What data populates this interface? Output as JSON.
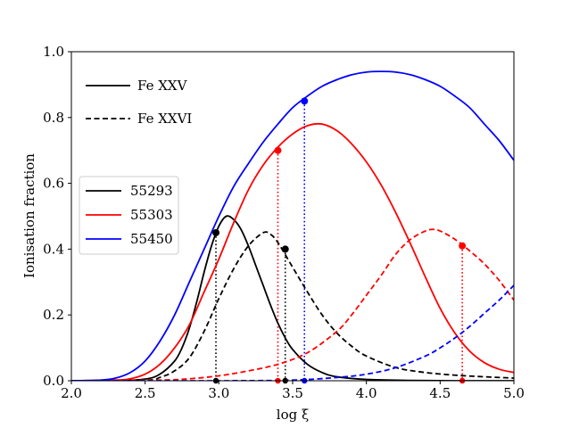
{
  "chart_data": {
    "type": "line",
    "title": "",
    "xlabel": "log ξ",
    "ylabel": "Ionisation fraction",
    "xlim": [
      2.0,
      5.0
    ],
    "ylim": [
      0.0,
      1.0
    ],
    "xticks": [
      2.0,
      2.5,
      3.0,
      3.5,
      4.0,
      4.5,
      5.0
    ],
    "xtick_labels": [
      "2.0",
      "2.5",
      "3.0",
      "3.5",
      "4.0",
      "4.5",
      "5.0"
    ],
    "yticks": [
      0.0,
      0.2,
      0.4,
      0.6,
      0.8,
      1.0
    ],
    "ytick_labels": [
      "0.0",
      "0.2",
      "0.4",
      "0.6",
      "0.8",
      "1.0"
    ],
    "grid": false,
    "style_legend": {
      "placement": "top-left",
      "entries": [
        {
          "label": "Fe XXV",
          "linestyle": "solid"
        },
        {
          "label": "Fe XXVI",
          "linestyle": "dashed"
        }
      ]
    },
    "color_legend": {
      "placement": "center-left",
      "entries": [
        {
          "label": "55293",
          "color": "#000000"
        },
        {
          "label": "55303",
          "color": "#ff0000"
        },
        {
          "label": "55450",
          "color": "#0000ff"
        }
      ]
    },
    "series": [
      {
        "name": "55293 Fe XXV",
        "color": "#000000",
        "linestyle": "solid",
        "x": [
          2.0,
          2.3,
          2.5,
          2.6,
          2.7,
          2.75,
          2.8,
          2.85,
          2.9,
          2.95,
          3.0,
          3.05,
          3.1,
          3.15,
          3.2,
          3.25,
          3.3,
          3.35,
          3.4,
          3.45,
          3.5,
          3.6,
          3.7,
          3.8,
          4.0,
          4.3,
          4.6,
          5.0
        ],
        "y": [
          0.0,
          0.0,
          0.005,
          0.02,
          0.06,
          0.1,
          0.16,
          0.24,
          0.33,
          0.41,
          0.47,
          0.5,
          0.49,
          0.46,
          0.41,
          0.35,
          0.29,
          0.23,
          0.175,
          0.13,
          0.095,
          0.05,
          0.025,
          0.012,
          0.004,
          0.001,
          0.0,
          0.0
        ]
      },
      {
        "name": "55293 Fe XXVI",
        "color": "#000000",
        "linestyle": "dashed",
        "x": [
          2.0,
          2.5,
          2.6,
          2.7,
          2.8,
          2.9,
          3.0,
          3.1,
          3.2,
          3.3,
          3.35,
          3.4,
          3.5,
          3.6,
          3.7,
          3.8,
          3.9,
          4.0,
          4.2,
          4.4,
          4.6,
          4.8,
          5.0
        ],
        "y": [
          0.0,
          0.002,
          0.01,
          0.03,
          0.07,
          0.15,
          0.25,
          0.34,
          0.41,
          0.45,
          0.445,
          0.42,
          0.345,
          0.27,
          0.2,
          0.145,
          0.105,
          0.075,
          0.04,
          0.025,
          0.017,
          0.012,
          0.008
        ]
      },
      {
        "name": "55303 Fe XXV",
        "color": "#ff0000",
        "linestyle": "solid",
        "x": [
          2.0,
          2.3,
          2.4,
          2.5,
          2.6,
          2.7,
          2.8,
          2.9,
          3.0,
          3.1,
          3.2,
          3.3,
          3.4,
          3.5,
          3.6,
          3.7,
          3.8,
          3.9,
          4.0,
          4.1,
          4.2,
          4.3,
          4.4,
          4.5,
          4.6,
          4.7,
          4.8,
          4.9,
          5.0
        ],
        "y": [
          0.0,
          0.002,
          0.006,
          0.02,
          0.05,
          0.1,
          0.17,
          0.27,
          0.37,
          0.48,
          0.58,
          0.655,
          0.71,
          0.75,
          0.775,
          0.78,
          0.76,
          0.72,
          0.665,
          0.595,
          0.51,
          0.415,
          0.315,
          0.22,
          0.145,
          0.09,
          0.055,
          0.035,
          0.025
        ]
      },
      {
        "name": "55303 Fe XXVI",
        "color": "#ff0000",
        "linestyle": "dashed",
        "x": [
          2.0,
          2.6,
          2.8,
          3.0,
          3.2,
          3.4,
          3.6,
          3.8,
          3.9,
          4.0,
          4.1,
          4.2,
          4.3,
          4.4,
          4.45,
          4.5,
          4.6,
          4.7,
          4.8,
          4.9,
          5.0
        ],
        "y": [
          0.0,
          0.002,
          0.006,
          0.015,
          0.03,
          0.05,
          0.085,
          0.15,
          0.2,
          0.26,
          0.32,
          0.385,
          0.43,
          0.455,
          0.46,
          0.455,
          0.43,
          0.395,
          0.355,
          0.305,
          0.245
        ]
      },
      {
        "name": "55450 Fe XXV",
        "color": "#0000ff",
        "linestyle": "solid",
        "x": [
          2.0,
          2.2,
          2.3,
          2.4,
          2.5,
          2.6,
          2.7,
          2.8,
          2.9,
          3.0,
          3.1,
          3.2,
          3.3,
          3.4,
          3.5,
          3.6,
          3.7,
          3.8,
          3.9,
          4.0,
          4.1,
          4.2,
          4.3,
          4.4,
          4.5,
          4.6,
          4.7,
          4.8,
          4.9,
          5.0
        ],
        "y": [
          0.0,
          0.002,
          0.008,
          0.025,
          0.06,
          0.12,
          0.2,
          0.3,
          0.4,
          0.5,
          0.59,
          0.66,
          0.725,
          0.78,
          0.83,
          0.865,
          0.895,
          0.915,
          0.93,
          0.938,
          0.94,
          0.938,
          0.93,
          0.915,
          0.895,
          0.865,
          0.83,
          0.78,
          0.73,
          0.67
        ]
      },
      {
        "name": "55450 Fe XXVI",
        "color": "#0000ff",
        "linestyle": "dashed",
        "x": [
          2.0,
          3.0,
          3.5,
          3.8,
          4.0,
          4.2,
          4.4,
          4.5,
          4.6,
          4.7,
          4.8,
          4.9,
          5.0
        ],
        "y": [
          0.0,
          0.0,
          0.002,
          0.01,
          0.02,
          0.04,
          0.075,
          0.1,
          0.13,
          0.165,
          0.205,
          0.245,
          0.29
        ]
      }
    ],
    "markers": [
      {
        "series": "55293 Fe XXV",
        "color": "#000000",
        "x": 2.98,
        "y": 0.45
      },
      {
        "series": "55293 Fe XXVI",
        "color": "#000000",
        "x": 3.45,
        "y": 0.4
      },
      {
        "series": "55303 Fe XXV",
        "color": "#ff0000",
        "x": 3.4,
        "y": 0.7
      },
      {
        "series": "55303 Fe XXVI",
        "color": "#ff0000",
        "x": 4.65,
        "y": 0.41
      },
      {
        "series": "55450 Fe XXV",
        "color": "#0000ff",
        "x": 3.58,
        "y": 0.85
      }
    ]
  }
}
